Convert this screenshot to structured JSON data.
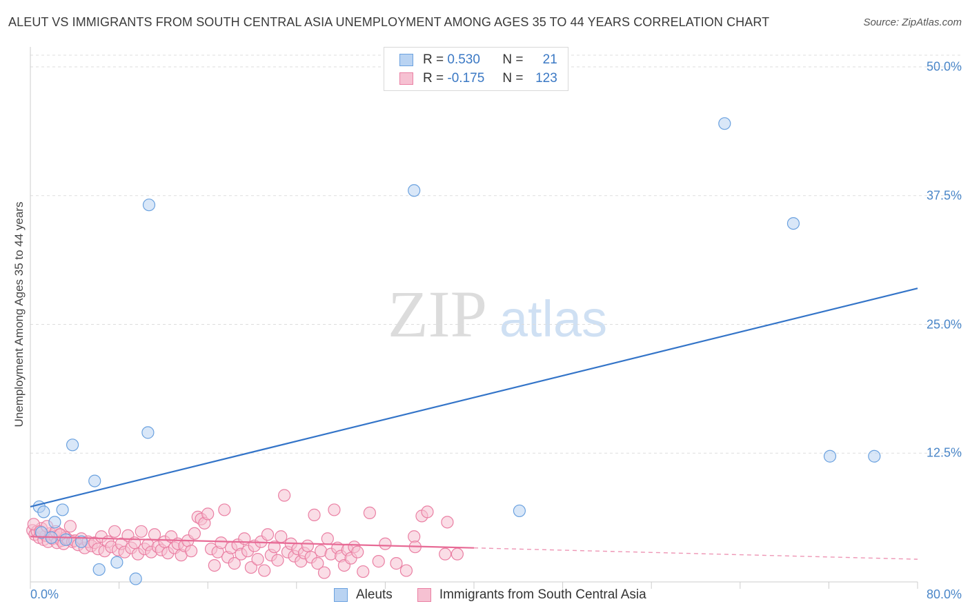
{
  "header": {
    "title": "ALEUT VS IMMIGRANTS FROM SOUTH CENTRAL ASIA UNEMPLOYMENT AMONG AGES 35 TO 44 YEARS CORRELATION CHART",
    "source": "Source: ZipAtlas.com"
  },
  "watermark": {
    "zip": "ZIP",
    "atlas": "atlas"
  },
  "legend": {
    "rows": [
      {
        "r_label": "R =",
        "r_value": "0.530",
        "n_label": "N =",
        "n_value": "21"
      },
      {
        "r_label": "R =",
        "r_value": "-0.175",
        "n_label": "N =",
        "n_value": "123"
      }
    ]
  },
  "colors": {
    "aleut": "#6aa1df",
    "aleut_fill": "#b9d3f2",
    "immigrants": "#ea7fa3",
    "immigrants_fill": "#f6c1d2",
    "aleut_line": "#3374c8",
    "immigrants_line": "#e76a95",
    "tick_label": "#4a86c8",
    "grid": "#dddddd"
  },
  "chart_data": {
    "type": "scatter",
    "title": "ALEUT VS IMMIGRANTS FROM SOUTH CENTRAL ASIA UNEMPLOYMENT AMONG AGES 35 TO 44 YEARS CORRELATION CHART",
    "xlabel": "",
    "ylabel": "Unemployment Among Ages 35 to 44 years",
    "xlim": [
      0,
      80
    ],
    "ylim": [
      0,
      50
    ],
    "x_tick_labels": [
      "0.0%",
      "80.0%"
    ],
    "y_ticks": [
      12.5,
      25.0,
      37.5,
      50.0
    ],
    "y_tick_labels": [
      "12.5%",
      "25.0%",
      "37.5%",
      "50.0%"
    ],
    "legend_position": "top-center",
    "series": [
      {
        "name": "Aleuts",
        "R": 0.53,
        "N": 21,
        "trend": {
          "x": [
            0,
            80
          ],
          "y": [
            7.3,
            28.5
          ],
          "dashed_from": null
        },
        "points": [
          [
            0.8,
            7.3
          ],
          [
            1.2,
            6.8
          ],
          [
            2.9,
            7.0
          ],
          [
            2.2,
            5.8
          ],
          [
            3.8,
            13.3
          ],
          [
            5.8,
            9.8
          ],
          [
            10.7,
            36.6
          ],
          [
            10.6,
            14.5
          ],
          [
            6.2,
            1.2
          ],
          [
            7.8,
            1.9
          ],
          [
            9.5,
            0.3
          ],
          [
            34.6,
            38.0
          ],
          [
            62.6,
            44.5
          ],
          [
            68.8,
            34.8
          ],
          [
            44.1,
            6.9
          ],
          [
            72.1,
            12.2
          ],
          [
            76.1,
            12.2
          ],
          [
            1.0,
            4.8
          ],
          [
            1.9,
            4.3
          ],
          [
            3.2,
            4.1
          ],
          [
            4.6,
            3.9
          ]
        ]
      },
      {
        "name": "Immigrants from South Central Asia",
        "R": -0.175,
        "N": 123,
        "trend": {
          "x": [
            0,
            80
          ],
          "y": [
            4.4,
            2.2
          ],
          "dashed_from": 40
        },
        "points": [
          [
            0.2,
            5.0
          ],
          [
            0.4,
            4.6
          ],
          [
            0.6,
            4.9
          ],
          [
            0.8,
            4.3
          ],
          [
            1.0,
            5.2
          ],
          [
            1.2,
            4.1
          ],
          [
            1.4,
            4.5
          ],
          [
            1.6,
            3.9
          ],
          [
            1.8,
            4.7
          ],
          [
            2.0,
            4.2
          ],
          [
            2.2,
            4.4
          ],
          [
            2.4,
            3.8
          ],
          [
            2.6,
            4.6
          ],
          [
            2.8,
            4.0
          ],
          [
            3.0,
            3.7
          ],
          [
            3.2,
            4.3
          ],
          [
            3.4,
            4.1
          ],
          [
            3.6,
            5.4
          ],
          [
            3.8,
            3.9
          ],
          [
            4.0,
            4.0
          ],
          [
            4.3,
            3.6
          ],
          [
            4.6,
            4.2
          ],
          [
            4.9,
            3.3
          ],
          [
            5.2,
            3.9
          ],
          [
            5.5,
            3.5
          ],
          [
            5.8,
            3.8
          ],
          [
            6.1,
            3.2
          ],
          [
            6.4,
            4.4
          ],
          [
            6.7,
            3.0
          ],
          [
            7.0,
            3.9
          ],
          [
            7.3,
            3.4
          ],
          [
            7.6,
            4.9
          ],
          [
            7.9,
            3.1
          ],
          [
            8.2,
            3.7
          ],
          [
            8.5,
            2.9
          ],
          [
            8.8,
            4.5
          ],
          [
            9.1,
            3.3
          ],
          [
            9.4,
            3.8
          ],
          [
            9.7,
            2.7
          ],
          [
            10.0,
            4.9
          ],
          [
            10.3,
            3.2
          ],
          [
            10.6,
            3.6
          ],
          [
            10.9,
            2.9
          ],
          [
            11.2,
            4.6
          ],
          [
            11.5,
            3.4
          ],
          [
            11.8,
            3.1
          ],
          [
            12.1,
            3.9
          ],
          [
            12.4,
            2.8
          ],
          [
            12.7,
            4.4
          ],
          [
            13.0,
            3.3
          ],
          [
            13.3,
            3.7
          ],
          [
            13.6,
            2.6
          ],
          [
            13.9,
            3.5
          ],
          [
            14.2,
            4.0
          ],
          [
            14.5,
            3.0
          ],
          [
            14.8,
            4.7
          ],
          [
            15.1,
            6.3
          ],
          [
            15.4,
            6.1
          ],
          [
            15.7,
            5.7
          ],
          [
            16.0,
            6.6
          ],
          [
            16.3,
            3.2
          ],
          [
            16.6,
            1.6
          ],
          [
            16.9,
            2.9
          ],
          [
            17.2,
            3.8
          ],
          [
            17.5,
            7.0
          ],
          [
            17.8,
            2.4
          ],
          [
            18.1,
            3.3
          ],
          [
            18.4,
            1.8
          ],
          [
            18.7,
            3.6
          ],
          [
            19.0,
            2.7
          ],
          [
            19.3,
            4.2
          ],
          [
            19.6,
            3.0
          ],
          [
            19.9,
            1.4
          ],
          [
            20.2,
            3.5
          ],
          [
            20.5,
            2.2
          ],
          [
            20.8,
            3.9
          ],
          [
            21.1,
            1.1
          ],
          [
            21.4,
            4.6
          ],
          [
            21.7,
            2.6
          ],
          [
            22.0,
            3.4
          ],
          [
            22.3,
            2.1
          ],
          [
            22.6,
            4.4
          ],
          [
            22.9,
            8.4
          ],
          [
            23.2,
            2.9
          ],
          [
            23.5,
            3.7
          ],
          [
            23.8,
            2.5
          ],
          [
            24.1,
            3.2
          ],
          [
            24.4,
            2.0
          ],
          [
            24.7,
            2.8
          ],
          [
            25.0,
            3.5
          ],
          [
            25.3,
            2.4
          ],
          [
            25.6,
            6.5
          ],
          [
            25.9,
            1.8
          ],
          [
            26.2,
            3.0
          ],
          [
            26.5,
            0.9
          ],
          [
            26.8,
            4.2
          ],
          [
            27.1,
            2.7
          ],
          [
            27.4,
            7.0
          ],
          [
            27.7,
            3.3
          ],
          [
            28.0,
            2.5
          ],
          [
            28.3,
            1.6
          ],
          [
            28.6,
            3.1
          ],
          [
            28.9,
            2.3
          ],
          [
            29.2,
            3.4
          ],
          [
            29.5,
            2.9
          ],
          [
            30.0,
            1.0
          ],
          [
            30.6,
            6.7
          ],
          [
            31.4,
            2.0
          ],
          [
            32.0,
            3.7
          ],
          [
            33.0,
            1.8
          ],
          [
            33.9,
            1.1
          ],
          [
            34.6,
            4.4
          ],
          [
            35.3,
            6.4
          ],
          [
            35.8,
            6.8
          ],
          [
            37.6,
            5.8
          ],
          [
            37.4,
            2.7
          ],
          [
            38.5,
            2.7
          ],
          [
            34.7,
            3.4
          ],
          [
            0.3,
            5.6
          ],
          [
            0.9,
            4.9
          ],
          [
            1.5,
            5.4
          ],
          [
            2.3,
            4.9
          ],
          [
            2.7,
            4.6
          ]
        ]
      }
    ]
  },
  "bottom_legend": {
    "items": [
      "Aleuts",
      "Immigrants from South Central Asia"
    ]
  }
}
